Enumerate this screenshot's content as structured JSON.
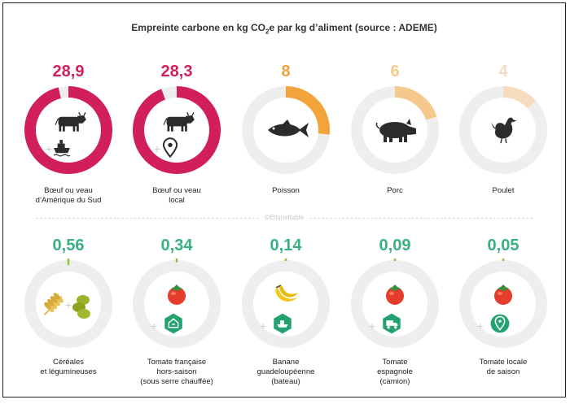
{
  "title": {
    "prefix": "Empreinte carbone en kg CO",
    "sub": "2",
    "suffix": "e par kg d’aliment (source : ADEME)"
  },
  "watermark": "©Etiquettable",
  "colors": {
    "track": "#eeeeee",
    "meat_high": "#d11f5a",
    "fish": "#f2a33a",
    "pork": "#f5c98b",
    "poultry": "#f8dcbf",
    "veg": "#39b07f",
    "veg_bar": "#8ac83a",
    "icon": "#2c2c2c",
    "tomato": "#e53d2c",
    "badge": "#23a16e"
  },
  "chart_data": {
    "type": "donut",
    "title": "Empreinte carbone en kg CO2e par kg d’aliment (source : ADEME)",
    "max": 30,
    "rows": [
      [
        {
          "value_label": "28,9",
          "value": 28.9,
          "color": "#d11f5a",
          "icons": [
            "cow-icon",
            "ship-icon"
          ],
          "label": [
            "Bœuf ou veau",
            "d’Amérique du Sud"
          ]
        },
        {
          "value_label": "28,3",
          "value": 28.3,
          "color": "#d11f5a",
          "icons": [
            "cow-icon",
            "location-pin-icon"
          ],
          "label": [
            "Bœuf ou veau",
            "local"
          ]
        },
        {
          "value_label": "8",
          "value": 8,
          "color": "#f2a33a",
          "icons": [
            "fish-icon"
          ],
          "label": [
            "Poisson"
          ]
        },
        {
          "value_label": "6",
          "value": 6,
          "color": "#f5c98b",
          "icons": [
            "pig-icon"
          ],
          "label": [
            "Porc"
          ]
        },
        {
          "value_label": "4",
          "value": 4,
          "color": "#f8dcbf",
          "icons": [
            "chicken-icon"
          ],
          "label": [
            "Poulet"
          ]
        }
      ],
      [
        {
          "value_label": "0,56",
          "value": 0.56,
          "color": "#39b07f",
          "bar_color": "#8ac83a",
          "icons": [
            "wheat-icon",
            "beans-icon"
          ],
          "label": [
            "Céréales",
            "et légumineuses"
          ]
        },
        {
          "value_label": "0,34",
          "value": 0.34,
          "color": "#39b07f",
          "bar_color": "#8ac83a",
          "icons": [
            "tomato-icon",
            "greenhouse-badge-icon"
          ],
          "label": [
            "Tomate française",
            "hors-saison",
            "(sous serre chauffée)"
          ]
        },
        {
          "value_label": "0,14",
          "value": 0.14,
          "color": "#39b07f",
          "bar_color": "#8ac83a",
          "icons": [
            "banana-icon",
            "boat-badge-icon"
          ],
          "label": [
            "Banane",
            "guadeloupéenne",
            "(bateau)"
          ]
        },
        {
          "value_label": "0,09",
          "value": 0.09,
          "color": "#39b07f",
          "bar_color": "#8ac83a",
          "icons": [
            "tomato-icon",
            "truck-badge-icon"
          ],
          "label": [
            "Tomate",
            "espagnole",
            "(camion)"
          ]
        },
        {
          "value_label": "0,05",
          "value": 0.05,
          "color": "#39b07f",
          "bar_color": "#8ac83a",
          "icons": [
            "tomato-icon",
            "pin-badge-icon"
          ],
          "label": [
            "Tomate locale",
            "de saison"
          ]
        }
      ]
    ]
  }
}
